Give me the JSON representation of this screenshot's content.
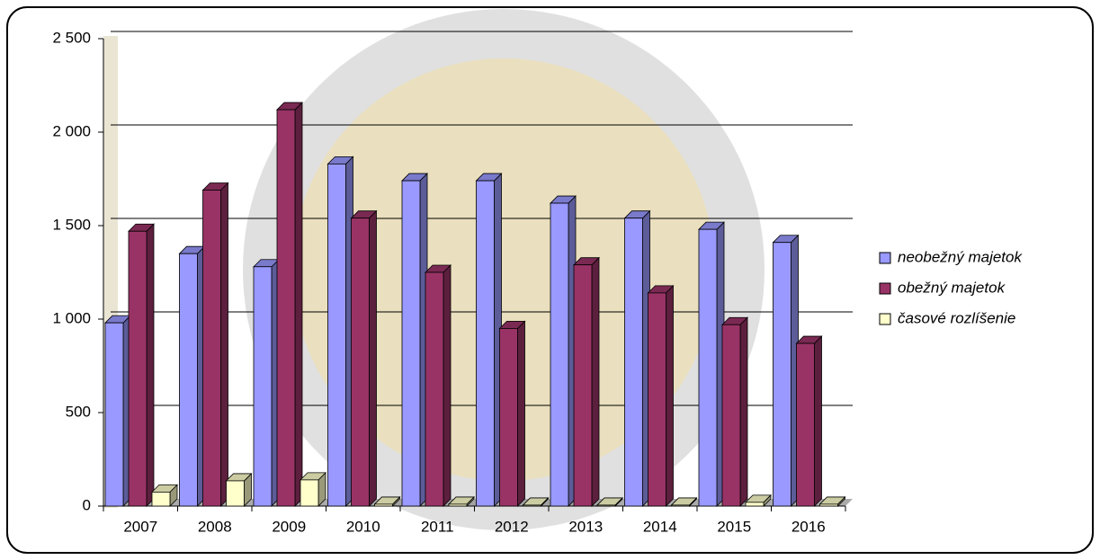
{
  "chart_data": {
    "type": "bar3d",
    "categories": [
      "2007",
      "2008",
      "2009",
      "2010",
      "2011",
      "2012",
      "2013",
      "2014",
      "2015",
      "2016"
    ],
    "series": [
      {
        "name": "neobežný majetok",
        "color": "#9999ff",
        "values": [
          980,
          1350,
          1280,
          1830,
          1740,
          1740,
          1620,
          1540,
          1480,
          1410
        ]
      },
      {
        "name": "obežný majetok",
        "color": "#993366",
        "values": [
          1470,
          1690,
          2120,
          1540,
          1250,
          950,
          1290,
          1140,
          970,
          870
        ]
      },
      {
        "name": "časové rozlíšenie",
        "color": "#ffffcc",
        "values": [
          75,
          135,
          140,
          10,
          10,
          5,
          5,
          5,
          20,
          10
        ]
      }
    ],
    "ylim": [
      0,
      2500
    ],
    "yticks": [
      0,
      500,
      {
        "value": 1000,
        "label": "1 000"
      },
      {
        "value": 1500,
        "label": "1 500"
      },
      {
        "value": 2000,
        "label": "2 000"
      },
      {
        "value": 2500,
        "label": "2 500"
      }
    ],
    "grid": true,
    "legend": "right"
  }
}
